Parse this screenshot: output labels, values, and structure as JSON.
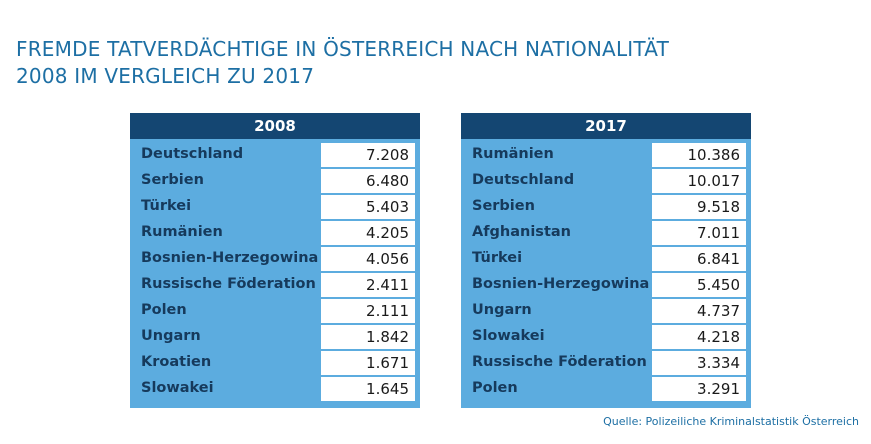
{
  "title": {
    "line1": "FREMDE TATVERDÄCHTIGE IN ÖSTERREICH NACH NATIONALITÄT",
    "line2": "2008 IM VERGLEICH ZU 2017"
  },
  "colors": {
    "title": "#1d6fa4",
    "header_bg": "#144672",
    "table_bg": "#5cacdf",
    "label_text": "#163a5c"
  },
  "tables": [
    {
      "year": "2008",
      "rows": [
        {
          "label": "Deutschland",
          "value": "7.208"
        },
        {
          "label": "Serbien",
          "value": "6.480"
        },
        {
          "label": "Türkei",
          "value": "5.403"
        },
        {
          "label": "Rumänien",
          "value": "4.205"
        },
        {
          "label": "Bosnien-Herzegowina",
          "value": "4.056"
        },
        {
          "label": "Russische Föderation",
          "value": "2.411"
        },
        {
          "label": "Polen",
          "value": "2.111"
        },
        {
          "label": "Ungarn",
          "value": "1.842"
        },
        {
          "label": "Kroatien",
          "value": "1.671"
        },
        {
          "label": "Slowakei",
          "value": "1.645"
        }
      ]
    },
    {
      "year": "2017",
      "rows": [
        {
          "label": "Rumänien",
          "value": "10.386"
        },
        {
          "label": "Deutschland",
          "value": "10.017"
        },
        {
          "label": "Serbien",
          "value": "9.518"
        },
        {
          "label": "Afghanistan",
          "value": "7.011"
        },
        {
          "label": "Türkei",
          "value": "6.841"
        },
        {
          "label": "Bosnien-Herzegowina",
          "value": "5.450"
        },
        {
          "label": "Ungarn",
          "value": "4.737"
        },
        {
          "label": "Slowakei",
          "value": "4.218"
        },
        {
          "label": "Russische Föderation",
          "value": "3.334"
        },
        {
          "label": "Polen",
          "value": "3.291"
        }
      ]
    }
  ],
  "source": "Quelle: Polizeiliche Kriminalstatistik Österreich"
}
